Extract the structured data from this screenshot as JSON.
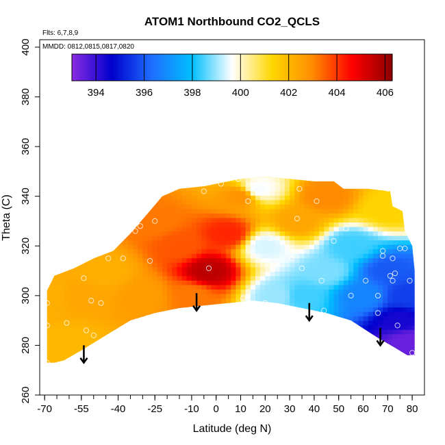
{
  "chart_data": {
    "type": "heatmap",
    "title": "ATOM1 Northbound CO2_QCLS",
    "annotations": {
      "flights": "Flts: 6,7,8,9",
      "dates": "MMDD: 0812,0815,0817,0820"
    },
    "xlabel": "Latitude (deg N)",
    "ylabel": "Theta (C)",
    "xlim": [
      -72,
      85
    ],
    "ylim": [
      260,
      403
    ],
    "x_ticks": [
      -70,
      -55,
      -40,
      -25,
      -10,
      0,
      10,
      20,
      30,
      40,
      50,
      60,
      70,
      80
    ],
    "x_tick_labels": [
      "-70",
      "-55",
      "-40",
      "-25",
      "-10",
      "0",
      "10",
      "20",
      "30",
      "40",
      "50",
      "60",
      "70",
      "80"
    ],
    "y_ticks": [
      260,
      280,
      300,
      320,
      340,
      360,
      380,
      400
    ],
    "y_tick_labels": [
      "260",
      "280",
      "300",
      "320",
      "340",
      "360",
      "380",
      "400"
    ],
    "colorbar": {
      "range": [
        393,
        406.3
      ],
      "ticks": [
        394,
        396,
        398,
        400,
        402,
        404,
        406
      ],
      "tick_labels": [
        "394",
        "396",
        "398",
        "400",
        "402",
        "404",
        "406"
      ],
      "colors": [
        "#8a2be2",
        "#0000cd",
        "#1e6fff",
        "#00bfff",
        "#ffffff",
        "#ffd700",
        "#ff8c00",
        "#ff0000",
        "#8b0000"
      ]
    },
    "field": {
      "description_points": [
        {
          "lat": -68,
          "theta": 300,
          "co2": 402.2
        },
        {
          "lat": -60,
          "theta": 280,
          "co2": 402.0
        },
        {
          "lat": -55,
          "theta": 300,
          "co2": 402.4
        },
        {
          "lat": -45,
          "theta": 310,
          "co2": 402.2
        },
        {
          "lat": -30,
          "theta": 300,
          "co2": 402.6
        },
        {
          "lat": -25,
          "theta": 330,
          "co2": 403.2
        },
        {
          "lat": -15,
          "theta": 320,
          "co2": 403.6
        },
        {
          "lat": -10,
          "theta": 300,
          "co2": 403.2
        },
        {
          "lat": -3,
          "theta": 310,
          "co2": 405.6
        },
        {
          "lat": 5,
          "theta": 325,
          "co2": 404.2
        },
        {
          "lat": 10,
          "theta": 340,
          "co2": 402.8
        },
        {
          "lat": 17,
          "theta": 343,
          "co2": 399.6
        },
        {
          "lat": 20,
          "theta": 320,
          "co2": 399.4
        },
        {
          "lat": 25,
          "theta": 300,
          "co2": 399.0
        },
        {
          "lat": 35,
          "theta": 300,
          "co2": 398.4
        },
        {
          "lat": 33,
          "theta": 330,
          "co2": 402.4
        },
        {
          "lat": 45,
          "theta": 340,
          "co2": 403.0
        },
        {
          "lat": 45,
          "theta": 310,
          "co2": 398.8
        },
        {
          "lat": 55,
          "theta": 320,
          "co2": 398.4
        },
        {
          "lat": 60,
          "theta": 300,
          "co2": 396.8
        },
        {
          "lat": 70,
          "theta": 310,
          "co2": 396.0
        },
        {
          "lat": 75,
          "theta": 290,
          "co2": 394.4
        },
        {
          "lat": 78,
          "theta": 300,
          "co2": 395.6
        },
        {
          "lat": 70,
          "theta": 335,
          "co2": 401.4
        },
        {
          "lat": 78,
          "theta": 282,
          "co2": 393.4
        }
      ]
    },
    "sample_points": [
      {
        "lat": -68,
        "theta": 309
      },
      {
        "lat": -69,
        "theta": 297
      },
      {
        "lat": -69,
        "theta": 288
      },
      {
        "lat": -69,
        "theta": 273
      },
      {
        "lat": -61,
        "theta": 289
      },
      {
        "lat": -54,
        "theta": 307
      },
      {
        "lat": -53,
        "theta": 286
      },
      {
        "lat": -51,
        "theta": 298
      },
      {
        "lat": -50,
        "theta": 284
      },
      {
        "lat": -47,
        "theta": 297
      },
      {
        "lat": -44,
        "theta": 315
      },
      {
        "lat": -38,
        "theta": 315
      },
      {
        "lat": -33,
        "theta": 326
      },
      {
        "lat": -31,
        "theta": 328
      },
      {
        "lat": -27,
        "theta": 314
      },
      {
        "lat": -25,
        "theta": 330
      },
      {
        "lat": -23,
        "theta": 341
      },
      {
        "lat": -28,
        "theta": 291
      },
      {
        "lat": -5,
        "theta": 342
      },
      {
        "lat": -3,
        "theta": 311
      },
      {
        "lat": 2,
        "theta": 345
      },
      {
        "lat": 9,
        "theta": 347
      },
      {
        "lat": 11,
        "theta": 299
      },
      {
        "lat": 13,
        "theta": 338
      },
      {
        "lat": 19,
        "theta": 347
      },
      {
        "lat": 20,
        "theta": 297
      },
      {
        "lat": 22,
        "theta": 323
      },
      {
        "lat": 31,
        "theta": 315
      },
      {
        "lat": 32,
        "theta": 294
      },
      {
        "lat": 33,
        "theta": 331
      },
      {
        "lat": 34,
        "theta": 343
      },
      {
        "lat": 35,
        "theta": 311
      },
      {
        "lat": 41,
        "theta": 338
      },
      {
        "lat": 43,
        "theta": 306
      },
      {
        "lat": 44,
        "theta": 294
      },
      {
        "lat": 48,
        "theta": 322
      },
      {
        "lat": 53,
        "theta": 327
      },
      {
        "lat": 55,
        "theta": 300
      },
      {
        "lat": 61,
        "theta": 306
      },
      {
        "lat": 66,
        "theta": 300
      },
      {
        "lat": 68,
        "theta": 318
      },
      {
        "lat": 68,
        "theta": 316
      },
      {
        "lat": 70,
        "theta": 343
      },
      {
        "lat": 71,
        "theta": 308
      },
      {
        "lat": 72,
        "theta": 315
      },
      {
        "lat": 72,
        "theta": 306
      },
      {
        "lat": 73,
        "theta": 309
      },
      {
        "lat": 74,
        "theta": 288
      },
      {
        "lat": 75,
        "theta": 319
      },
      {
        "lat": 77,
        "theta": 319
      },
      {
        "lat": 79,
        "theta": 306
      },
      {
        "lat": 80,
        "theta": 277
      },
      {
        "lat": 66,
        "theta": 293
      }
    ],
    "arrows": [
      {
        "lat": -54,
        "theta_top": 280,
        "theta_tip": 273
      },
      {
        "lat": -8,
        "theta_top": 301,
        "theta_tip": 294
      },
      {
        "lat": 38,
        "theta_top": 297,
        "theta_tip": 290
      },
      {
        "lat": 67,
        "theta_top": 287,
        "theta_tip": 280
      }
    ]
  }
}
